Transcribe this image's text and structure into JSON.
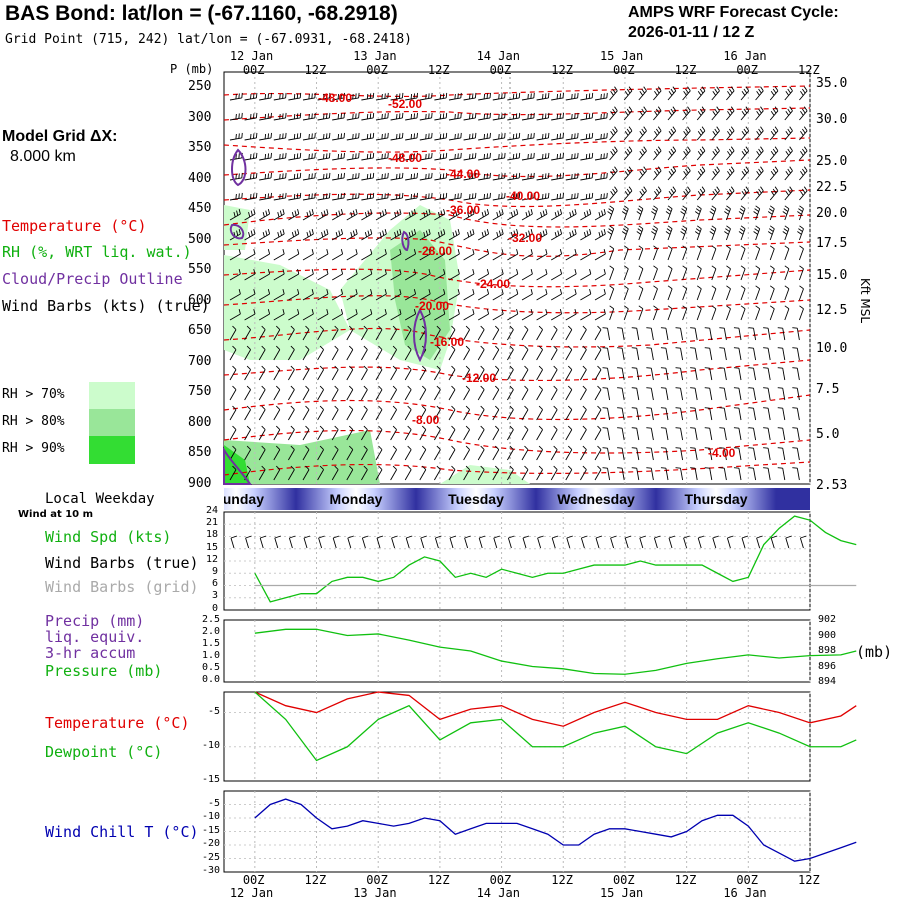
{
  "header": {
    "title": "BAS Bond:  lat/lon = (-67.1160, -68.2918)",
    "grid_point": "Grid Point (715, 242) lat/lon = (-67.0931, -68.2418)",
    "forecast_label": "AMPS WRF Forecast Cycle:",
    "forecast_cycle": "2026-01-11 / 12  Z"
  },
  "legend": {
    "model_grid_label": "Model Grid ΔX:",
    "model_grid_value": "8.000 km",
    "temperature": "Temperature (°C)",
    "rh": "RH (%, WRT liq. wat.)",
    "cloud": "Cloud/Precip Outline",
    "wind_barbs": "Wind Barbs (kts) (true)",
    "rh_levels": [
      "RH > 70%",
      "RH > 80%",
      "RH > 90%"
    ],
    "rh_colors": [
      "#ccfccc",
      "#99e699",
      "#33dd33"
    ]
  },
  "axis": {
    "p_label": "P (mb)",
    "kft_label": "Kft MSL",
    "pressure_levels": [
      "250",
      "300",
      "350",
      "400",
      "450",
      "500",
      "550",
      "600",
      "650",
      "700",
      "750",
      "800",
      "850",
      "900"
    ],
    "kft_levels": [
      "35.0",
      "30.0",
      "25.0",
      "22.5",
      "20.0",
      "17.5",
      "15.0",
      "12.5",
      "10.0",
      "7.5",
      "5.0",
      "2.53"
    ],
    "time_ticks": [
      "00Z",
      "12Z",
      "00Z",
      "12Z",
      "00Z",
      "12Z",
      "00Z",
      "12Z",
      "00Z",
      "12Z"
    ],
    "date_labels": [
      "12 Jan",
      "13 Jan",
      "14 Jan",
      "15 Jan",
      "16 Jan"
    ]
  },
  "weekday": {
    "label": "Local Weekday",
    "days": [
      "Sunday",
      "Monday",
      "Tuesday",
      "Wednesday",
      "Thursday"
    ]
  },
  "isotherms": [
    "-48.00",
    "-52.00",
    "-48.00",
    "-44.00",
    "-40.00",
    "-36.00",
    "-32.00",
    "-28.00",
    "-24.00",
    "-20.00",
    "-16.00",
    "-12.00",
    "-8.00",
    "-4.00"
  ],
  "wind_panel": {
    "sub_label": "Wind at 10 m",
    "spd_label": "Wind Spd (kts)",
    "barbs_true_label": "Wind Barbs (true)",
    "barbs_grid_label": "Wind Barbs (grid)",
    "yticks": [
      "24",
      "21",
      "18",
      "15",
      "12",
      "9",
      "6",
      "3",
      "0"
    ]
  },
  "precip_panel": {
    "precip_label": "Precip (mm)",
    "liq_label": "liq. equiv.",
    "accum_label": "3-hr accum",
    "pressure_label": "Pressure (mb)",
    "units": "(mb)",
    "left_ticks": [
      "2.5",
      "2.0",
      "1.5",
      "1.0",
      "0.5",
      "0.0"
    ],
    "right_ticks": [
      "902",
      "900",
      "898",
      "896",
      "894"
    ]
  },
  "temp_panel": {
    "temp_label": "Temperature (°C)",
    "dew_label": "Dewpoint (°C)",
    "yticks": [
      "-5",
      "-10",
      "-15"
    ]
  },
  "chill_panel": {
    "label": "Wind Chill T (°C)",
    "yticks": [
      "-5",
      "-10",
      "-15",
      "-20",
      "-25",
      "-30"
    ]
  },
  "colors": {
    "red": "#e00000",
    "green": "#10c010",
    "purple": "#7030a0",
    "blue": "#0000b0",
    "gray": "#aaaaaa"
  },
  "chart_data": [
    {
      "type": "line",
      "title": "Wind Spd (kts)",
      "ylim": [
        0,
        24
      ],
      "x_hours": [
        0,
        3,
        6,
        9,
        12,
        15,
        18,
        21,
        24,
        27,
        30,
        33,
        36,
        39,
        42,
        45,
        48,
        51,
        54,
        57,
        60,
        63,
        66,
        69,
        72,
        75,
        78,
        81,
        84,
        87,
        90,
        93,
        96,
        99,
        102,
        105,
        108,
        111,
        114,
        117
      ],
      "series": [
        {
          "name": "Wind Spd",
          "values": [
            9,
            2,
            3,
            4,
            4,
            7,
            8,
            8,
            7,
            8,
            11,
            13,
            12,
            8,
            9,
            8,
            10,
            9,
            8,
            9,
            9,
            10,
            11,
            11,
            11,
            12,
            11,
            11,
            11,
            11,
            9,
            7,
            8,
            16,
            20,
            23,
            22,
            19,
            17,
            16
          ]
        },
        {
          "name": "Wind Barbs (grid) baseline",
          "values": [
            6,
            6,
            6,
            6,
            6,
            6,
            6,
            6,
            6,
            6,
            6,
            6,
            6,
            6,
            6,
            6,
            6,
            6,
            6,
            6,
            6,
            6,
            6,
            6,
            6,
            6,
            6,
            6,
            6,
            6,
            6,
            6,
            6,
            6,
            6,
            6,
            6,
            6,
            6,
            6
          ]
        }
      ]
    },
    {
      "type": "line",
      "title": "Precip (mm) / Pressure (mb)",
      "ylim": [
        0,
        2.5
      ],
      "y2lim": [
        894,
        902
      ],
      "x_hours": [
        0,
        6,
        12,
        18,
        24,
        30,
        36,
        42,
        48,
        54,
        60,
        66,
        72,
        78,
        84,
        90,
        96,
        102,
        108,
        114,
        117
      ],
      "series": [
        {
          "name": "Pressure",
          "values": [
            900.3,
            900.8,
            900.8,
            900.0,
            900.2,
            899.4,
            898.5,
            898.0,
            896.7,
            896.0,
            895.7,
            895.1,
            895.0,
            895.5,
            896.4,
            897.0,
            897.5,
            897.1,
            897.4,
            897.5,
            898.0
          ]
        }
      ]
    },
    {
      "type": "line",
      "title": "Temperature / Dewpoint (°C)",
      "ylim": [
        -15,
        -2
      ],
      "x_hours": [
        0,
        6,
        12,
        18,
        24,
        30,
        36,
        42,
        48,
        54,
        60,
        66,
        72,
        78,
        84,
        90,
        96,
        102,
        108,
        114,
        117
      ],
      "series": [
        {
          "name": "Temperature",
          "values": [
            -2,
            -4,
            -5,
            -3,
            -2,
            -2.5,
            -6,
            -4.5,
            -4,
            -6,
            -7,
            -5,
            -3.5,
            -5,
            -6,
            -6,
            -4,
            -5,
            -6.5,
            -5.5,
            -4
          ]
        },
        {
          "name": "Dewpoint",
          "values": [
            -2,
            -6,
            -12,
            -10,
            -6,
            -4,
            -9,
            -6.5,
            -6,
            -10,
            -10,
            -8,
            -7,
            -10,
            -11,
            -8,
            -6.5,
            -8,
            -10,
            -10,
            -9
          ]
        }
      ]
    },
    {
      "type": "line",
      "title": "Wind Chill T (°C)",
      "ylim": [
        -30,
        0
      ],
      "x_hours": [
        0,
        3,
        6,
        9,
        12,
        15,
        18,
        21,
        24,
        27,
        30,
        33,
        36,
        39,
        42,
        45,
        48,
        51,
        54,
        57,
        60,
        63,
        66,
        69,
        72,
        75,
        78,
        81,
        84,
        87,
        90,
        93,
        96,
        99,
        102,
        105,
        108,
        111,
        114,
        117
      ],
      "series": [
        {
          "name": "Wind Chill",
          "values": [
            -10,
            -5,
            -3,
            -5,
            -10,
            -14,
            -13,
            -11,
            -12,
            -13,
            -12,
            -10,
            -11,
            -16,
            -14,
            -12,
            -12,
            -12,
            -14,
            -16,
            -20,
            -20,
            -16,
            -14,
            -14,
            -15,
            -16,
            -17,
            -15,
            -11,
            -9,
            -9,
            -13,
            -20,
            -23,
            -26,
            -25,
            -23,
            -21,
            -19
          ]
        }
      ]
    }
  ]
}
